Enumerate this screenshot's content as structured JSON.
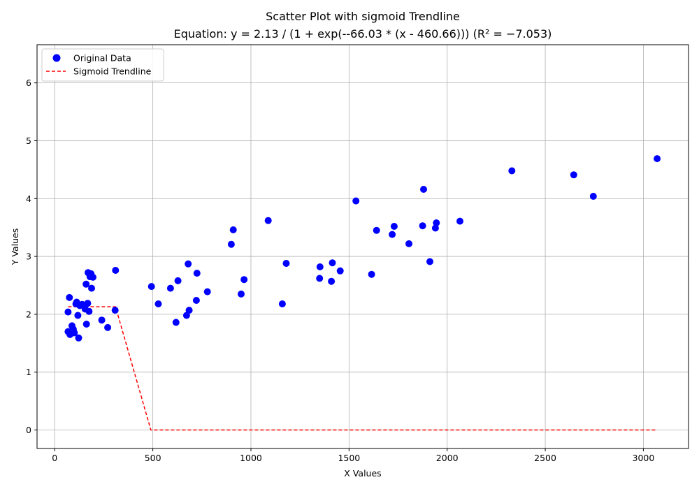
{
  "chart_data": {
    "type": "scatter",
    "title": "Scatter Plot with sigmoid Trendline",
    "subtitle": "Equation: y = 2.13 / (1 + exp(--66.03 * (x - 460.66))) (R² = −7.053)",
    "xlabel": "X Values",
    "ylabel": "Y Values",
    "xlim": [
      -90,
      3230
    ],
    "ylim": [
      -0.32,
      6.66
    ],
    "xticks": [
      0,
      500,
      1000,
      1500,
      2000,
      2500,
      3000
    ],
    "yticks": [
      0,
      1,
      2,
      3,
      4,
      5,
      6
    ],
    "grid": true,
    "legend_position": "top-left",
    "colors": {
      "points": "#0000ff",
      "trendline": "#ff0000"
    },
    "series": [
      {
        "name": "Original Data",
        "kind": "scatter",
        "x": [
          68,
          75,
          78,
          68,
          88,
          95,
          100,
          108,
          112,
          118,
          122,
          128,
          140,
          155,
          160,
          162,
          168,
          170,
          175,
          180,
          185,
          188,
          195,
          240,
          270,
          308,
          310,
          493,
          528,
          590,
          618,
          628,
          672,
          680,
          685,
          722,
          725,
          778,
          900,
          910,
          950,
          965,
          1088,
          1160,
          1180,
          1350,
          1352,
          1410,
          1415,
          1455,
          1535,
          1615,
          1640,
          1720,
          1730,
          1805,
          1875,
          1880,
          1912,
          1940,
          1945,
          2065,
          2330,
          2645,
          2745,
          3070
        ],
        "y": [
          1.7,
          2.29,
          1.65,
          2.04,
          1.8,
          1.74,
          1.68,
          2.18,
          2.21,
          1.98,
          1.59,
          2.15,
          2.17,
          2.09,
          2.52,
          1.83,
          2.19,
          2.72,
          2.05,
          2.65,
          2.7,
          2.45,
          2.64,
          1.9,
          1.77,
          2.07,
          2.76,
          2.48,
          2.18,
          2.45,
          1.86,
          2.58,
          1.98,
          2.87,
          2.07,
          2.24,
          2.71,
          2.39,
          3.21,
          3.46,
          2.35,
          2.6,
          3.62,
          2.18,
          2.88,
          2.62,
          2.82,
          2.57,
          2.89,
          2.75,
          3.96,
          2.69,
          3.45,
          3.38,
          3.52,
          3.22,
          3.53,
          4.16,
          2.91,
          3.49,
          3.58,
          3.61,
          4.48,
          4.41,
          4.04,
          4.69
        ]
      },
      {
        "name": "Sigmoid Trendline",
        "kind": "line",
        "style": "dashed",
        "x": [
          68,
          300,
          310,
          490,
          500,
          3070
        ],
        "y": [
          2.13,
          2.13,
          2.13,
          0.0,
          0.0,
          0.0
        ]
      }
    ]
  }
}
